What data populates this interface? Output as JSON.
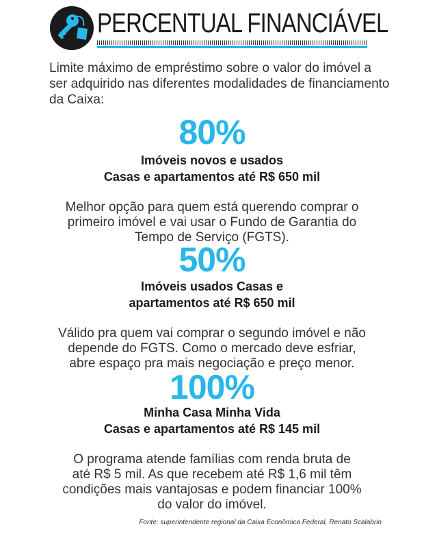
{
  "colors": {
    "accent": "#29b6e8",
    "dark": "#1a1a1a"
  },
  "header": {
    "icon": "key-tag-icon",
    "title": "PERCENTUAL FINANCIÁVEL"
  },
  "intro": "Limite máximo de empréstimo sobre o valor do imóvel a ser adquirido nas diferentes modalidades de financiamento da Caixa:",
  "sections": [
    {
      "percent": "80%",
      "subtitle": [
        "Imóveis novos e usados",
        "Casas e apartamentos até R$ 650 mil"
      ],
      "description": [
        "Melhor opção para quem está querendo comprar o",
        "primeiro imóvel e vai usar o Fundo de Garantia do",
        "Tempo de Serviço (FGTS)."
      ]
    },
    {
      "percent": "50%",
      "subtitle": [
        "Imóveis usados Casas e",
        "apartamentos até R$ 650 mil"
      ],
      "description": [
        "Válido pra quem vai comprar o segundo imóvel e não",
        "depende do FGTS. Como o mercado deve esfriar,",
        "abre espaço pra mais negociação e preço menor."
      ]
    },
    {
      "percent": "100%",
      "subtitle": [
        "Minha Casa Minha Vida",
        "Casas e apartamentos até R$ 145 mil"
      ],
      "description": [
        "O programa atende famílias com renda bruta de",
        "até R$ 5 mil. As que recebem até R$ 1,6 mil têm",
        "condições mais vantajosas e podem financiar 100%",
        "do valor do imóvel."
      ]
    }
  ],
  "source": "Fonte: superintendente regional da Caixa Econômica Federal, Renato Scalabrin"
}
